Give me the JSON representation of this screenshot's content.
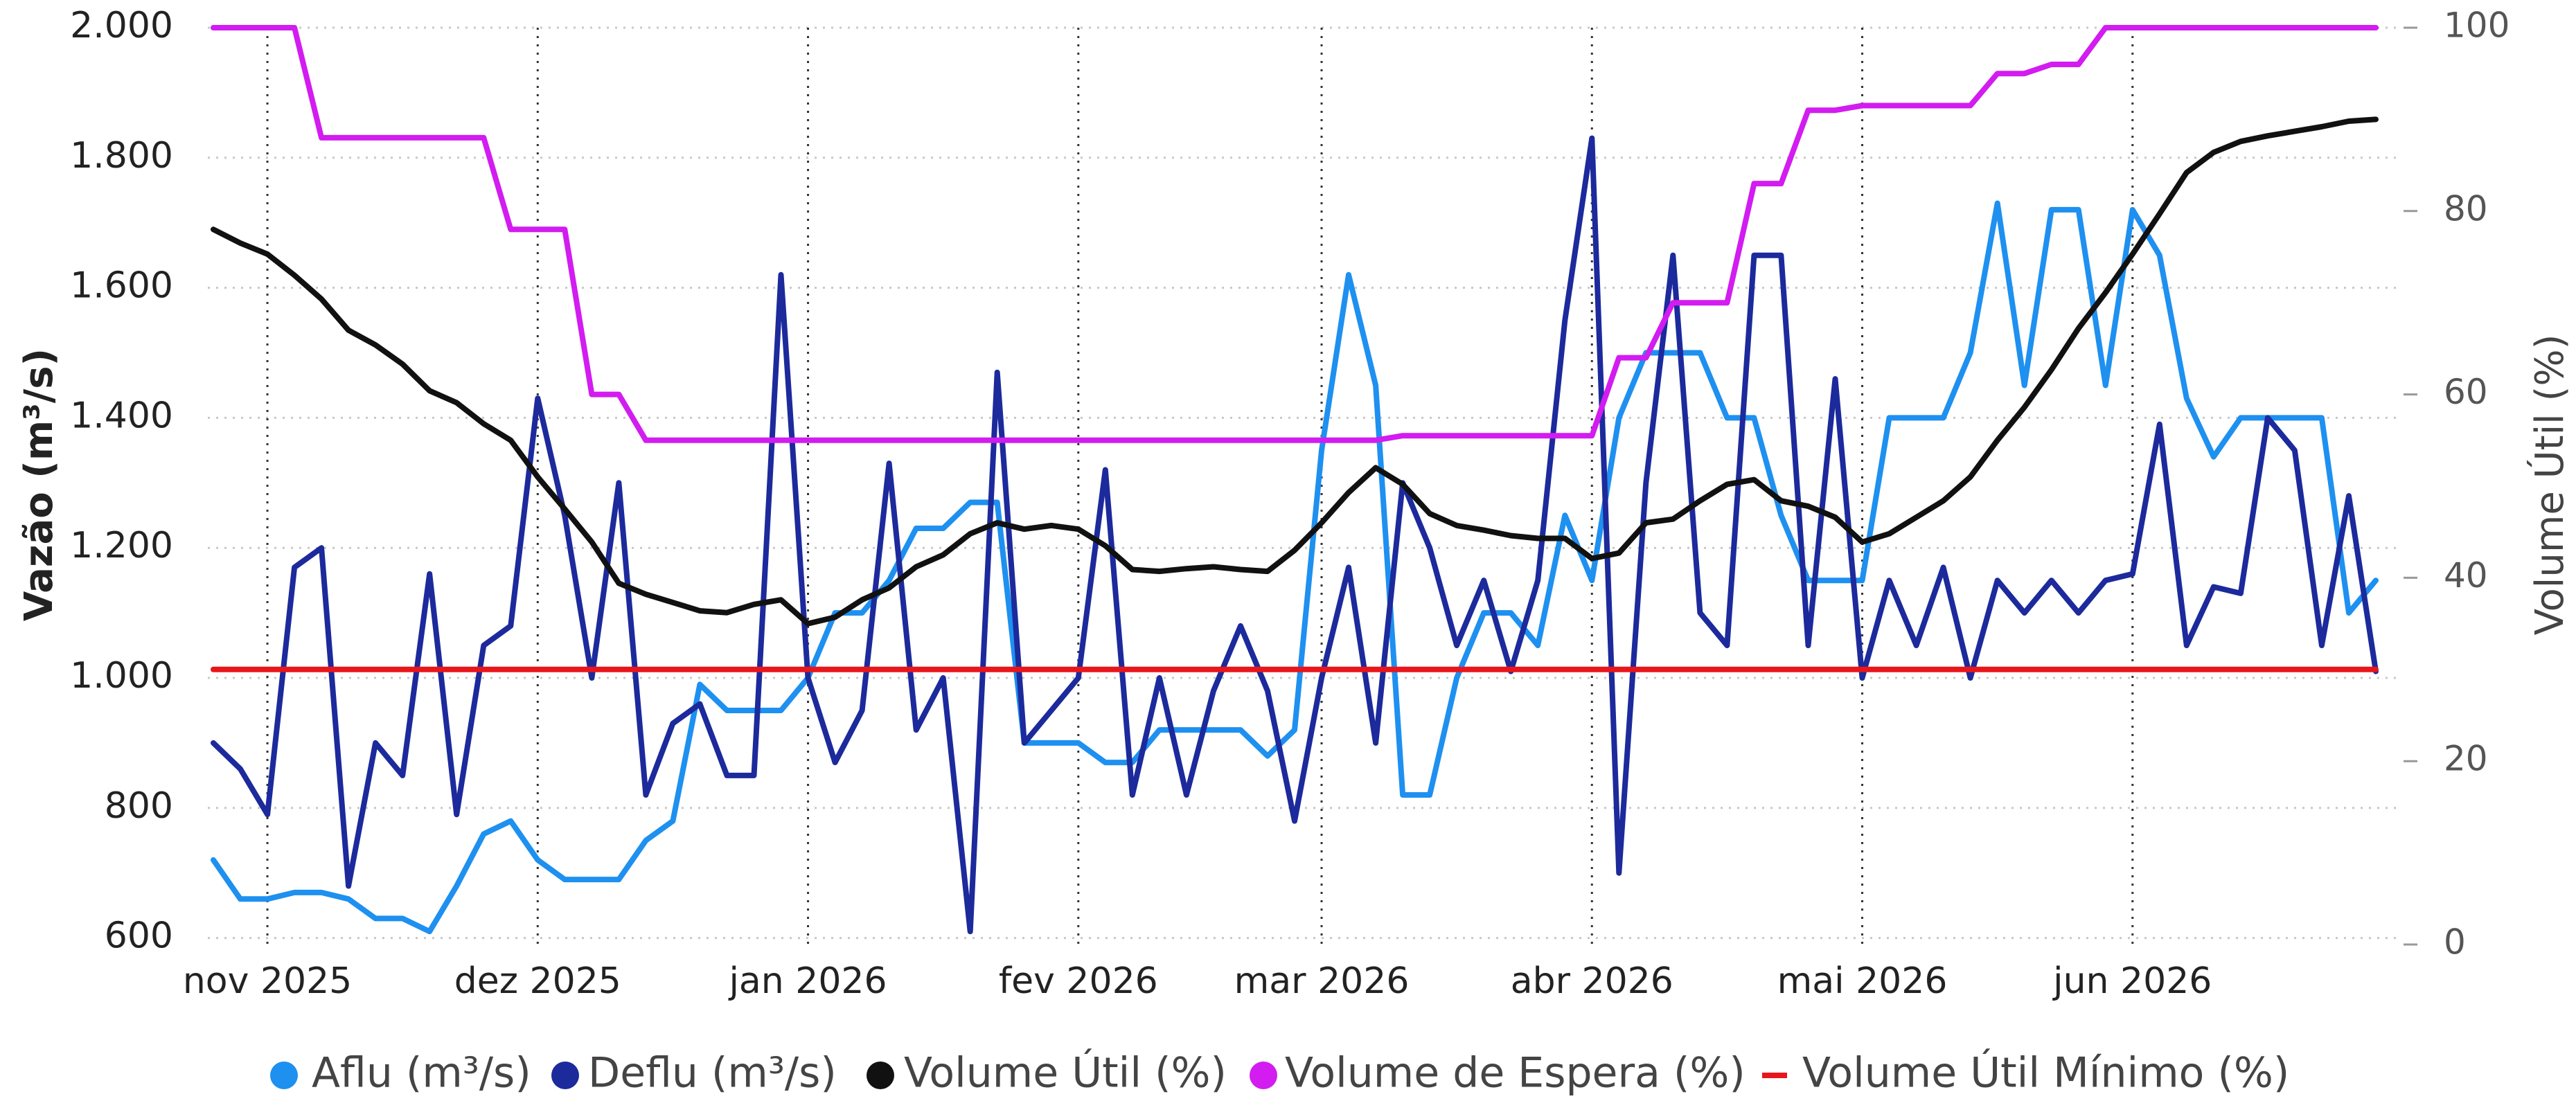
{
  "chart_data": {
    "type": "line",
    "y_label": "Vazão (m³/s)",
    "y2_label": "Volume Útil (%)",
    "categories": [
      null,
      null,
      "nov 2025",
      null,
      null,
      null,
      null,
      null,
      null,
      null,
      null,
      null,
      "dez 2025",
      null,
      null,
      null,
      null,
      null,
      null,
      null,
      null,
      null,
      "jan 2026",
      null,
      null,
      null,
      null,
      null,
      null,
      null,
      null,
      null,
      "fev 2026",
      null,
      null,
      null,
      null,
      null,
      null,
      null,
      null,
      "mar 2026",
      null,
      null,
      null,
      null,
      null,
      null,
      null,
      null,
      null,
      "abr 2026",
      null,
      null,
      null,
      null,
      null,
      null,
      null,
      null,
      null,
      "mai 2026",
      null,
      null,
      null,
      null,
      null,
      null,
      null,
      null,
      null,
      "jun 2026",
      null,
      null,
      null,
      null,
      null,
      null,
      null,
      null,
      null
    ],
    "series": [
      {
        "name": "Aflu (m³/s)",
        "color": "#1e90f0",
        "marker": "circle",
        "values": [
          720,
          660,
          660,
          670,
          670,
          660,
          630,
          630,
          610,
          680,
          760,
          780,
          720,
          690,
          690,
          690,
          750,
          780,
          990,
          950,
          950,
          950,
          1000,
          1100,
          1100,
          1150,
          1230,
          1230,
          1270,
          1270,
          900,
          900,
          900,
          870,
          870,
          920,
          920,
          920,
          920,
          880,
          920,
          1350,
          1620,
          1450,
          820,
          820,
          1000,
          1100,
          1100,
          1050,
          1250,
          1150,
          1400,
          1500,
          1500,
          1500,
          1400,
          1400,
          1250,
          1150,
          1150,
          1150,
          1400,
          1400,
          1400,
          1500,
          1730,
          1450,
          1720,
          1720,
          1450,
          1720,
          1650,
          1430,
          1340,
          1400,
          1400,
          1400,
          1400,
          1100,
          1150
        ]
      },
      {
        "name": "Deflu (m³/s)",
        "color": "#1c2a9c",
        "marker": "circle",
        "values": [
          900,
          860,
          790,
          1170,
          1200,
          680,
          900,
          850,
          1160,
          790,
          1050,
          1080,
          1430,
          1250,
          1000,
          1300,
          820,
          930,
          960,
          850,
          850,
          1620,
          1000,
          870,
          950,
          1330,
          920,
          1000,
          610,
          1470,
          900,
          950,
          1000,
          1320,
          820,
          1000,
          820,
          980,
          1080,
          980,
          780,
          1000,
          1170,
          900,
          1300,
          1200,
          1050,
          1150,
          1010,
          1150,
          1550,
          1830,
          700,
          1300,
          1650,
          1100,
          1050,
          1650,
          1650,
          1050,
          1460,
          1000,
          1150,
          1050,
          1170,
          1000,
          1150,
          1100,
          1150,
          1100,
          1150,
          1160,
          1390,
          1050,
          1140,
          1130,
          1400,
          1350,
          1050,
          1280,
          1010
        ]
      },
      {
        "name": "Volume Útil (%)",
        "color": "#111111",
        "marker": "circle",
        "axis": "y2",
        "values": [
          78,
          76.5,
          75.3,
          73,
          70.4,
          67,
          65.4,
          63.3,
          60.4,
          59.1,
          56.8,
          55,
          51,
          47.5,
          43.9,
          39.4,
          38.2,
          37.3,
          36.4,
          36.2,
          37.1,
          37.6,
          35,
          35.7,
          37.6,
          38.9,
          41.2,
          42.5,
          44.8,
          46,
          45.3,
          45.7,
          45.3,
          43.5,
          40.9,
          40.7,
          41,
          41.2,
          40.9,
          40.7,
          43,
          46,
          49.3,
          52,
          50.2,
          47,
          45.7,
          45.2,
          44.6,
          44.3,
          44.3,
          42.1,
          42.7,
          46,
          46.4,
          48.4,
          50.2,
          50.7,
          48.4,
          47.8,
          46.6,
          43.9,
          44.8,
          46.6,
          48.4,
          51,
          55,
          58.6,
          62.7,
          67.2,
          71.1,
          75.3,
          79.7,
          84.2,
          86.4,
          87.6,
          88.2,
          88.7,
          89.2,
          89.8,
          90
        ]
      },
      {
        "name": "Volume de Espera (%)",
        "color": "#d21cf0",
        "marker": "circle",
        "axis": "y2",
        "values": [
          100,
          100,
          100,
          100,
          88,
          88,
          88,
          88,
          88,
          88,
          88,
          78,
          78,
          78,
          60,
          60,
          55,
          55,
          55,
          55,
          55,
          55,
          55,
          55,
          55,
          55,
          55,
          55,
          55,
          55,
          55,
          55,
          55,
          55,
          55,
          55,
          55,
          55,
          55,
          55,
          55,
          55,
          55,
          55,
          55.5,
          55.5,
          55.5,
          55.5,
          55.5,
          55.5,
          55.5,
          55.5,
          64,
          64,
          70,
          70,
          70,
          83,
          83,
          91,
          91,
          91.5,
          91.5,
          91.5,
          91.5,
          91.5,
          95,
          95,
          96,
          96,
          100,
          100,
          100,
          100,
          100,
          100,
          100,
          100,
          100,
          100,
          100
        ]
      },
      {
        "name": "Volume Útil Mínimo (%)",
        "color": "#e8161b",
        "marker": "line",
        "axis": "y2",
        "values": [
          30,
          30,
          30,
          30,
          30,
          30,
          30,
          30,
          30,
          30,
          30,
          30,
          30,
          30,
          30,
          30,
          30,
          30,
          30,
          30,
          30,
          30,
          30,
          30,
          30,
          30,
          30,
          30,
          30,
          30,
          30,
          30,
          30,
          30,
          30,
          30,
          30,
          30,
          30,
          30,
          30,
          30,
          30,
          30,
          30,
          30,
          30,
          30,
          30,
          30,
          30,
          30,
          30,
          30,
          30,
          30,
          30,
          30,
          30,
          30,
          30,
          30,
          30,
          30,
          30,
          30,
          30,
          30,
          30,
          30,
          30,
          30,
          30,
          30,
          30,
          30,
          30,
          30,
          30,
          30,
          30
        ]
      }
    ],
    "ylim": [
      590,
      2000
    ],
    "yticks": [
      {
        "value": 600,
        "label": "600"
      },
      800,
      {
        "value": 1000,
        "label": "1.000"
      },
      {
        "value": 1200,
        "label": "1.200"
      },
      {
        "value": 1400,
        "label": "1.400"
      },
      {
        "value": 1600,
        "label": "1.600"
      },
      {
        "value": 1800,
        "label": "1.800"
      },
      {
        "value": 2000,
        "label": "2.000"
      }
    ],
    "y2lim": [
      0,
      100
    ],
    "y2ticks": [
      0,
      20,
      40,
      60,
      80,
      100
    ],
    "grid": true
  }
}
